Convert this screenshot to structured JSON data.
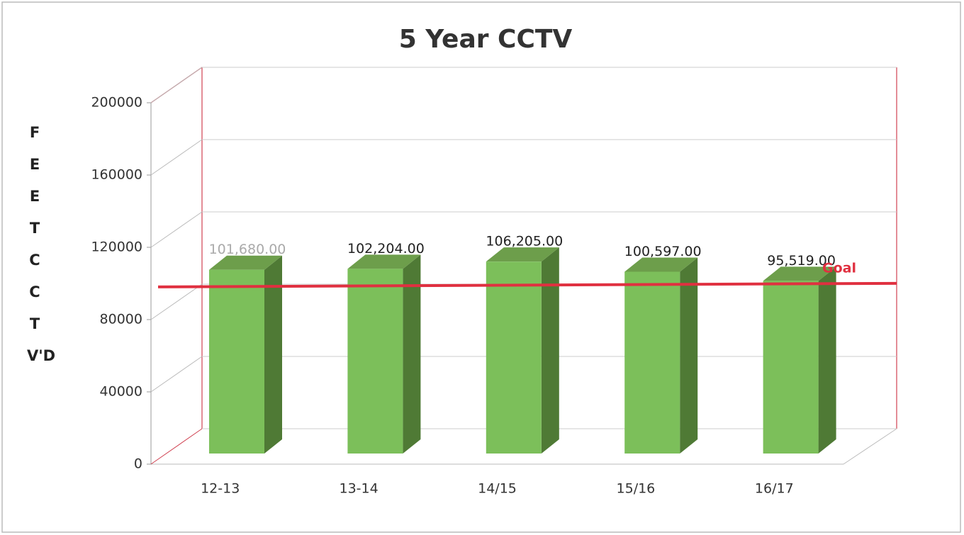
{
  "chart_data": {
    "type": "bar3d",
    "title": "5 Year CCTV",
    "y_label": "FEET  CCTV'D",
    "categories": [
      "12-13",
      "13-14",
      "14/15",
      "15/16",
      "16/17"
    ],
    "values": [
      101680,
      102204,
      106205,
      100597,
      95519
    ],
    "value_labels": [
      "101,680.00",
      "102,204.00",
      "106,205.00",
      "100,597.00",
      "95,519.00"
    ],
    "color": "#7cbf5a",
    "ylim": [
      0,
      200000
    ],
    "yticks": [
      0,
      40000,
      80000,
      120000,
      160000,
      200000
    ],
    "grid": true,
    "goal": {
      "label": "Goal",
      "value": 93000,
      "color": "#e03040"
    }
  }
}
